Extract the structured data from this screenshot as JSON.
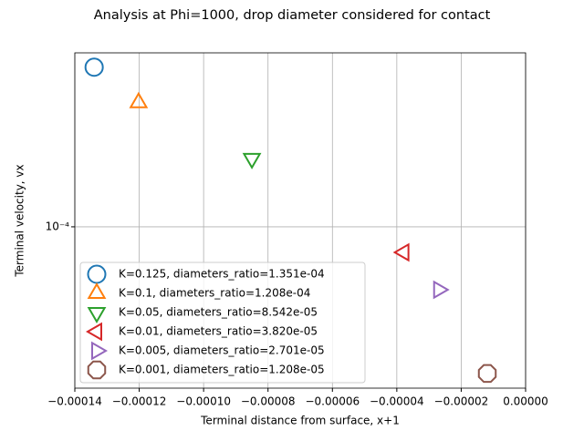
{
  "chart_data": {
    "type": "scatter",
    "title": "Analysis at Phi=1000, drop diameter considered for contact",
    "x_label": "Terminal distance from surface, x+1",
    "y_label": "Terminal velocity, vx",
    "xlim": [
      -0.00014,
      0
    ],
    "xticks": [
      {
        "value": -0.00014,
        "label": "−0.00014"
      },
      {
        "value": -0.00012,
        "label": "−0.00012"
      },
      {
        "value": -0.0001,
        "label": "−0.00010"
      },
      {
        "value": -8e-05,
        "label": "−0.00008"
      },
      {
        "value": -6e-05,
        "label": "−0.00006"
      },
      {
        "value": -4e-05,
        "label": "−0.00004"
      },
      {
        "value": -2e-05,
        "label": "−0.00002"
      },
      {
        "value": 0,
        "label": "0.00000"
      }
    ],
    "ylim": [
      3.61e-05,
      0.0003
    ],
    "yticks": [
      {
        "value": 0.0001,
        "label": "10⁻⁴"
      }
    ],
    "y_scale": "log",
    "grid": true,
    "legend": "lower left",
    "series": [
      {
        "name": "K=0.125, diameters_ratio=1.351e-04",
        "color": "#1f77b4",
        "marker": "circle",
        "x": [
          -0.000134
        ],
        "y": [
          0.000274
        ]
      },
      {
        "name": "K=0.1, diameters_ratio=1.208e-04",
        "color": "#ff7f0e",
        "marker": "triangle-up",
        "x": [
          -0.0001202
        ],
        "y": [
          0.000219
        ]
      },
      {
        "name": "K=0.05, diameters_ratio=8.542e-05",
        "color": "#2ca02c",
        "marker": "triangle-down",
        "x": [
          -8.5e-05
        ],
        "y": [
          0.000154
        ]
      },
      {
        "name": "K=0.01, diameters_ratio=3.820e-05",
        "color": "#d62728",
        "marker": "triangle-left",
        "x": [
          -3.78e-05
        ],
        "y": [
          8.51e-05
        ]
      },
      {
        "name": "K=0.005, diameters_ratio=2.701e-05",
        "color": "#9467bd",
        "marker": "triangle-right",
        "x": [
          -2.7e-05
        ],
        "y": [
          6.72e-05
        ]
      },
      {
        "name": "K=0.001, diameters_ratio=1.208e-05",
        "color": "#8c564b",
        "marker": "octagon",
        "x": [
          -1.19e-05
        ],
        "y": [
          3.96e-05
        ]
      }
    ]
  }
}
